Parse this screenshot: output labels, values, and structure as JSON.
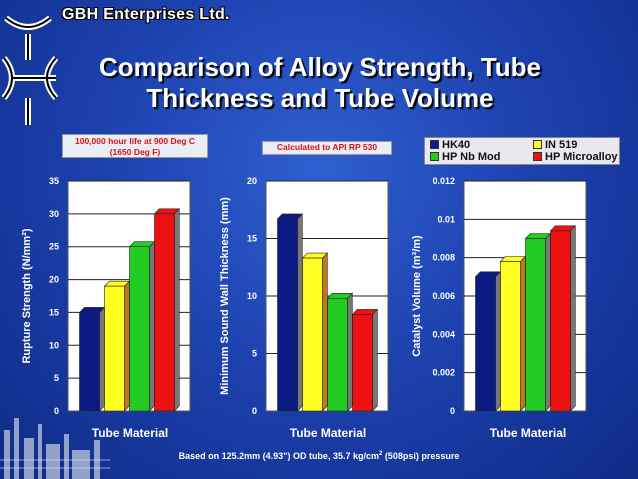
{
  "header": {
    "company": "GBH Enterprises Ltd.",
    "title_line1": "Comparison of Alloy Strength, Tube",
    "title_line2": "Thickness and Tube Volume"
  },
  "notes": {
    "life": "100,000 hour life at 900 Deg C (1650 Deg F)",
    "calc": "Calculated to API RP 530"
  },
  "legend": {
    "items": [
      {
        "name": "HK40",
        "color": "#0c1a86"
      },
      {
        "name": "IN 519",
        "color": "#ffff22"
      },
      {
        "name": "HP Nb Mod",
        "color": "#22cc22"
      },
      {
        "name": "HP Microalloy",
        "color": "#ee1111"
      }
    ]
  },
  "footnote": {
    "pre": "Based on 125.2mm (4.93\") OD tube, 35.7 kg/cm",
    "sup": "2",
    "post": " (508psi) pressure"
  },
  "chart_data": [
    {
      "type": "bar",
      "categories": [
        "HK40",
        "IN 519",
        "HP Nb Mod",
        "HP Microalloy"
      ],
      "values": [
        15,
        19,
        25,
        30
      ],
      "colors": [
        "#0c1a86",
        "#ffff22",
        "#22cc22",
        "#ee1111"
      ],
      "xlabel": "Tube Material",
      "ylabel": "Rupture Strength (N/mm²)",
      "ylim": [
        0,
        35
      ],
      "yticks": [
        "0",
        "5",
        "10",
        "15",
        "20",
        "25",
        "30",
        "35"
      ],
      "grid": true
    },
    {
      "type": "bar",
      "categories": [
        "HK40",
        "IN 519",
        "HP Nb Mod",
        "HP Microalloy"
      ],
      "values": [
        16.7,
        13.3,
        9.8,
        8.4
      ],
      "colors": [
        "#0c1a86",
        "#ffff22",
        "#22cc22",
        "#ee1111"
      ],
      "xlabel": "Tube Material",
      "ylabel": "Minimum Sound Wall Thickness (mm)",
      "ylim": [
        0,
        20
      ],
      "yticks": [
        "0",
        "5",
        "10",
        "15",
        "20"
      ],
      "grid": true
    },
    {
      "type": "bar",
      "categories": [
        "HK40",
        "IN 519",
        "HP Nb Mod",
        "HP Microalloy"
      ],
      "values": [
        0.007,
        0.0078,
        0.009,
        0.0094
      ],
      "colors": [
        "#0c1a86",
        "#ffff22",
        "#22cc22",
        "#ee1111"
      ],
      "xlabel": "Tube Material",
      "ylabel": "Catalyst Volume (m³/m)",
      "ylim": [
        0,
        0.012
      ],
      "yticks": [
        "0",
        "0.002",
        "0.004",
        "0.006",
        "0.008",
        "0.01",
        "0.012"
      ],
      "grid": true
    }
  ]
}
